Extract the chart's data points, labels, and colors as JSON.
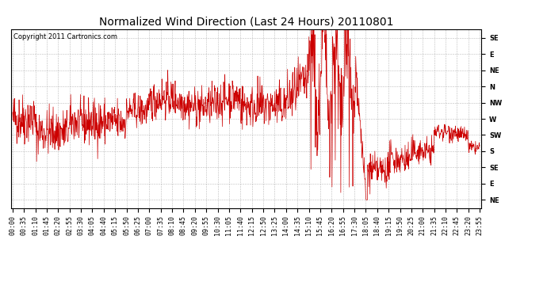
{
  "title": "Normalized Wind Direction (Last 24 Hours) 20110801",
  "copyright_text": "Copyright 2011 Cartronics.com",
  "background_color": "#ffffff",
  "plot_bg_color": "#ffffff",
  "line_color": "#cc0000",
  "grid_color": "#aaaaaa",
  "ytick_labels": [
    "SE",
    "E",
    "NE",
    "N",
    "NW",
    "W",
    "SW",
    "S",
    "SE",
    "E",
    "NE"
  ],
  "ytick_values": [
    10,
    9,
    8,
    7,
    6,
    5,
    4,
    3,
    2,
    1,
    0
  ],
  "ylim": [
    -0.5,
    10.5
  ],
  "title_fontsize": 10,
  "tick_fontsize": 6,
  "copyright_fontsize": 6,
  "xtick_labels": [
    "00:00",
    "00:35",
    "01:10",
    "01:45",
    "02:20",
    "02:55",
    "03:30",
    "04:05",
    "04:40",
    "05:15",
    "05:50",
    "06:25",
    "07:00",
    "07:35",
    "08:10",
    "08:45",
    "09:20",
    "09:55",
    "10:30",
    "11:05",
    "11:40",
    "12:15",
    "12:50",
    "13:25",
    "14:00",
    "14:35",
    "15:10",
    "15:45",
    "16:20",
    "16:55",
    "17:30",
    "18:05",
    "18:40",
    "19:15",
    "19:50",
    "20:25",
    "21:00",
    "21:35",
    "22:10",
    "22:45",
    "23:20",
    "23:55"
  ],
  "xtick_positions": [
    0,
    35,
    70,
    105,
    140,
    175,
    210,
    245,
    280,
    315,
    350,
    385,
    420,
    455,
    490,
    525,
    560,
    595,
    630,
    665,
    700,
    735,
    770,
    805,
    840,
    875,
    910,
    945,
    980,
    1015,
    1050,
    1085,
    1120,
    1155,
    1190,
    1225,
    1260,
    1295,
    1330,
    1365,
    1400,
    1435
  ]
}
